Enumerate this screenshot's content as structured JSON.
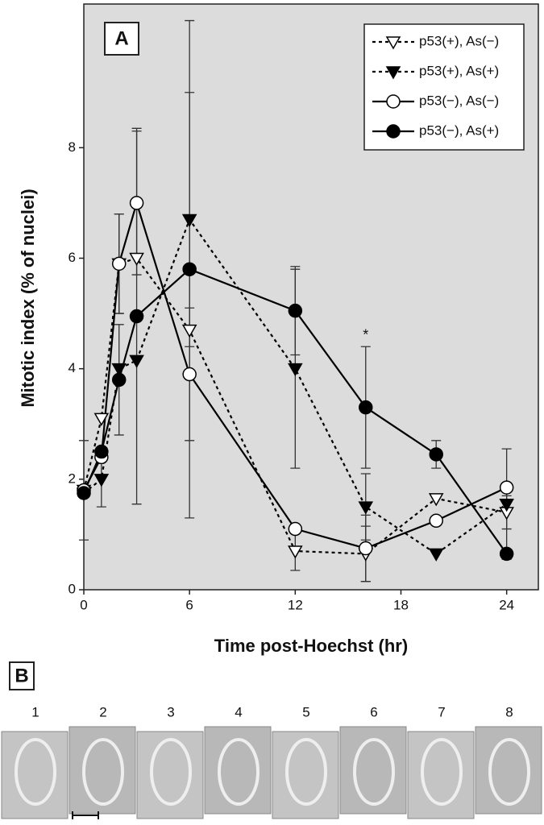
{
  "chart_data": {
    "type": "line",
    "panel_label": "A",
    "xlabel": "Time post-Hoechst (hr)",
    "ylabel": "Mitotic index (% of nuclei)",
    "x": [
      0,
      1,
      2,
      3,
      6,
      12,
      16,
      20,
      24
    ],
    "xlim": [
      0,
      25.8
    ],
    "xticks": [
      0,
      6,
      12,
      18,
      24
    ],
    "ylim": [
      0,
      10.6
    ],
    "yticks": [
      0,
      2,
      4,
      6,
      8
    ],
    "legend": "upper right",
    "annotations": [
      {
        "text": "*",
        "x": 16,
        "y": 4.6
      }
    ],
    "series": [
      {
        "name": "p53(+), As(−)",
        "color": "#000000",
        "marker": "triangle-down",
        "fill": "open",
        "dash": true,
        "values": [
          1.8,
          3.1,
          5.9,
          6.0,
          4.7,
          0.7,
          0.65,
          1.65,
          1.4
        ],
        "errors": [
          null,
          null,
          0.9,
          null,
          null,
          0.35,
          0.5,
          null,
          0.3
        ]
      },
      {
        "name": "p53(+), As(+)",
        "color": "#000000",
        "marker": "triangle-down",
        "fill": "filled",
        "dash": true,
        "values": [
          1.75,
          2.0,
          4.0,
          4.15,
          6.7,
          4.0,
          1.5,
          0.65,
          1.55
        ],
        "errors": [
          null,
          0.5,
          null,
          null,
          2.3,
          1.8,
          0.6,
          null,
          1.0
        ]
      },
      {
        "name": "p53(−), As(−)",
        "color": "#000000",
        "marker": "circle",
        "fill": "open",
        "dash": false,
        "values": [
          1.8,
          2.4,
          5.9,
          7.0,
          3.9,
          1.1,
          0.75,
          1.25,
          1.85
        ],
        "errors": [
          0.9,
          null,
          0.9,
          1.3,
          1.2,
          null,
          0.6,
          null,
          null
        ]
      },
      {
        "name": "p53(−), As(+)",
        "color": "#000000",
        "marker": "circle",
        "fill": "filled",
        "dash": false,
        "values": [
          1.75,
          2.5,
          3.8,
          4.95,
          5.8,
          5.05,
          3.3,
          2.45,
          0.65
        ],
        "errors": [
          null,
          null,
          1.0,
          3.4,
          4.5,
          0.8,
          1.1,
          0.25,
          null
        ]
      }
    ]
  },
  "panel_b": {
    "label": "B",
    "frames": [
      "1",
      "2",
      "3",
      "4",
      "5",
      "6",
      "7",
      "8"
    ]
  }
}
